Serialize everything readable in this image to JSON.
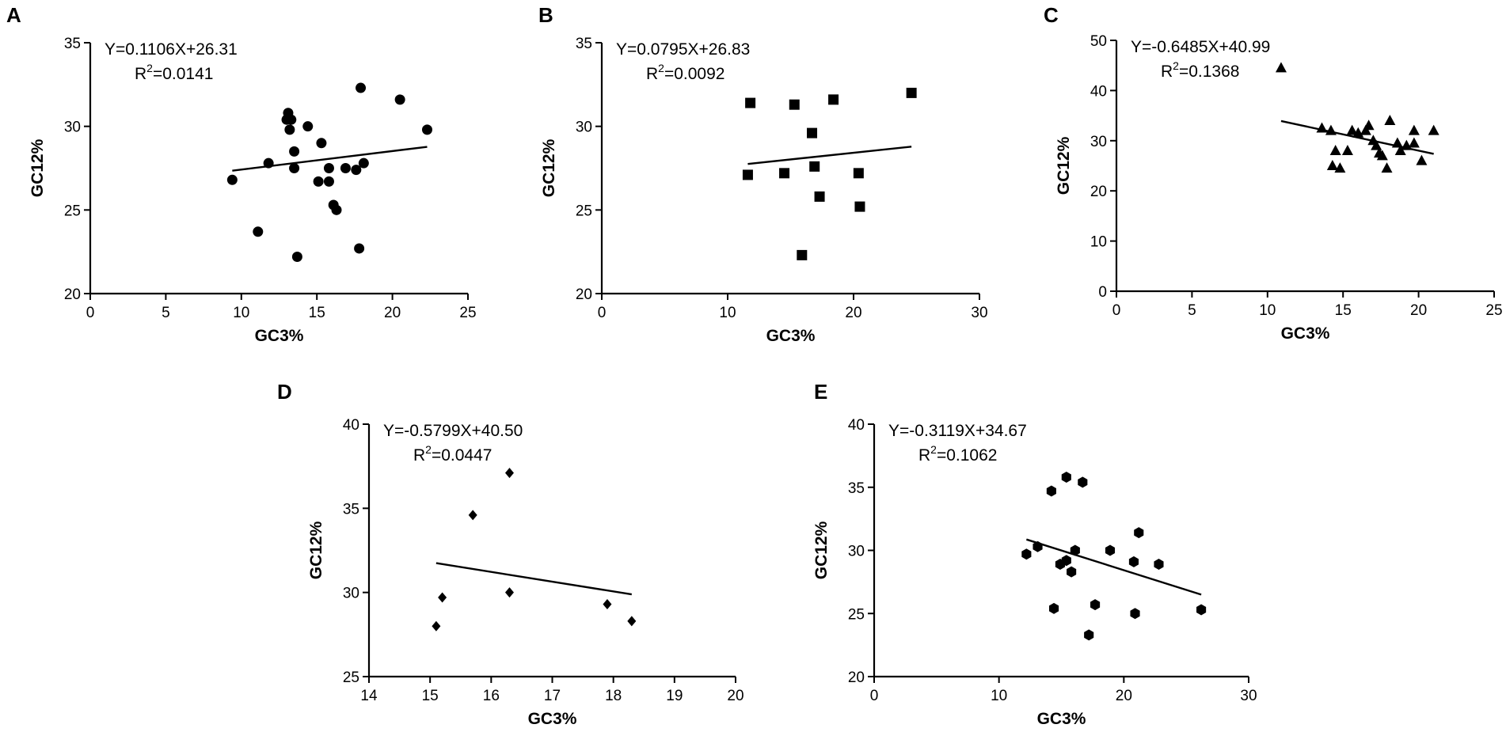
{
  "chart_data": [
    {
      "type": "scatter",
      "panel": "A",
      "marker": "circle",
      "xlabel": "GC3%",
      "ylabel": "GC12%",
      "xlim": [
        0,
        25
      ],
      "ylim": [
        20,
        35
      ],
      "xticks": [
        0,
        5,
        10,
        15,
        20,
        25
      ],
      "yticks": [
        20,
        25,
        30,
        35
      ],
      "equation": "Y=0.1106X+26.31",
      "r2_prefix": "R",
      "r2_exp": "2",
      "r2_value": "=0.0141",
      "fit": {
        "slope": 0.1106,
        "intercept": 26.31,
        "x_from": 9.4,
        "x_to": 22.3
      },
      "points": [
        [
          9.4,
          26.8
        ],
        [
          11.1,
          23.7
        ],
        [
          11.8,
          27.8
        ],
        [
          13.0,
          30.4
        ],
        [
          13.1,
          30.8
        ],
        [
          13.2,
          29.8
        ],
        [
          13.3,
          30.4
        ],
        [
          13.5,
          27.5
        ],
        [
          13.5,
          28.5
        ],
        [
          13.7,
          22.2
        ],
        [
          14.4,
          30.0
        ],
        [
          15.1,
          26.7
        ],
        [
          15.3,
          29.0
        ],
        [
          15.8,
          27.5
        ],
        [
          15.8,
          26.7
        ],
        [
          16.1,
          25.3
        ],
        [
          16.3,
          25.0
        ],
        [
          16.9,
          27.5
        ],
        [
          17.6,
          27.4
        ],
        [
          17.8,
          22.7
        ],
        [
          17.9,
          32.3
        ],
        [
          18.1,
          27.8
        ],
        [
          20.5,
          31.6
        ],
        [
          22.3,
          29.8
        ]
      ]
    },
    {
      "type": "scatter",
      "panel": "B",
      "marker": "square",
      "xlabel": "GC3%",
      "ylabel": "GC12%",
      "xlim": [
        0,
        30
      ],
      "ylim": [
        20,
        35
      ],
      "xticks": [
        0,
        10,
        20,
        30
      ],
      "yticks": [
        20,
        25,
        30,
        35
      ],
      "equation": "Y=0.0795X+26.83",
      "r2_prefix": "R",
      "r2_exp": "2",
      "r2_value": "=0.0092",
      "fit": {
        "slope": 0.0795,
        "intercept": 26.83,
        "x_from": 11.6,
        "x_to": 24.6
      },
      "points": [
        [
          11.6,
          27.1
        ],
        [
          11.8,
          31.4
        ],
        [
          14.5,
          27.2
        ],
        [
          15.3,
          31.3
        ],
        [
          16.7,
          29.6
        ],
        [
          16.9,
          27.6
        ],
        [
          17.3,
          25.8
        ],
        [
          15.9,
          22.3
        ],
        [
          18.4,
          31.6
        ],
        [
          20.4,
          27.2
        ],
        [
          20.5,
          25.2
        ],
        [
          24.6,
          32.0
        ]
      ]
    },
    {
      "type": "scatter",
      "panel": "C",
      "marker": "triangle",
      "xlabel": "GC3%",
      "ylabel": "GC12%",
      "xlim": [
        0,
        25
      ],
      "ylim": [
        0,
        50
      ],
      "xticks": [
        0,
        5,
        10,
        15,
        20,
        25
      ],
      "yticks": [
        0,
        10,
        20,
        30,
        40,
        50
      ],
      "equation": "Y=-0.6485X+40.99",
      "r2_prefix": "R",
      "r2_exp": "2",
      "r2_value": "=0.1368",
      "fit": {
        "slope": -0.6485,
        "intercept": 40.99,
        "x_from": 10.9,
        "x_to": 21.0
      },
      "points": [
        [
          10.9,
          44.5
        ],
        [
          13.6,
          32.5
        ],
        [
          14.2,
          32.0
        ],
        [
          14.3,
          25.0
        ],
        [
          14.5,
          28.0
        ],
        [
          14.8,
          24.5
        ],
        [
          15.3,
          28.0
        ],
        [
          15.6,
          32.0
        ],
        [
          16.0,
          31.5
        ],
        [
          16.5,
          32.0
        ],
        [
          16.7,
          33.0
        ],
        [
          17.0,
          30.0
        ],
        [
          17.2,
          29.0
        ],
        [
          17.4,
          27.5
        ],
        [
          17.6,
          27.0
        ],
        [
          17.9,
          24.5
        ],
        [
          18.1,
          34.0
        ],
        [
          18.6,
          29.5
        ],
        [
          18.8,
          28.0
        ],
        [
          19.2,
          29.0
        ],
        [
          19.7,
          32.0
        ],
        [
          19.7,
          29.5
        ],
        [
          20.2,
          26.0
        ],
        [
          21.0,
          32.0
        ]
      ]
    },
    {
      "type": "scatter",
      "panel": "D",
      "marker": "diamond",
      "xlabel": "GC3%",
      "ylabel": "GC12%",
      "xlim": [
        14,
        20
      ],
      "ylim": [
        25,
        40
      ],
      "xticks": [
        14,
        15,
        16,
        17,
        18,
        19,
        20
      ],
      "yticks": [
        25,
        30,
        35,
        40
      ],
      "equation": "Y=-0.5799X+40.50",
      "r2_prefix": "R",
      "r2_exp": "2",
      "r2_value": "=0.0447",
      "fit": {
        "slope": -0.5799,
        "intercept": 40.5,
        "x_from": 15.1,
        "x_to": 18.3
      },
      "points": [
        [
          15.1,
          28.0
        ],
        [
          15.2,
          29.7
        ],
        [
          15.7,
          34.6
        ],
        [
          16.3,
          37.1
        ],
        [
          16.3,
          30.0
        ],
        [
          17.9,
          29.3
        ],
        [
          18.3,
          28.3
        ]
      ]
    },
    {
      "type": "scatter",
      "panel": "E",
      "marker": "hexagon",
      "xlabel": "GC3%",
      "ylabel": "GC12%",
      "xlim": [
        0,
        30
      ],
      "ylim": [
        20,
        40
      ],
      "xticks": [
        0,
        10,
        20,
        30
      ],
      "yticks": [
        20,
        25,
        30,
        35,
        40
      ],
      "equation": "Y=-0.3119X+34.67",
      "r2_prefix": "R",
      "r2_exp": "2",
      "r2_value": "=0.1062",
      "fit": {
        "slope": -0.3119,
        "intercept": 34.67,
        "x_from": 12.2,
        "x_to": 26.2
      },
      "points": [
        [
          12.2,
          29.7
        ],
        [
          13.1,
          30.3
        ],
        [
          14.2,
          34.7
        ],
        [
          14.4,
          25.4
        ],
        [
          14.9,
          28.9
        ],
        [
          15.4,
          29.2
        ],
        [
          15.4,
          35.8
        ],
        [
          15.8,
          28.3
        ],
        [
          16.1,
          30.0
        ],
        [
          16.7,
          35.4
        ],
        [
          17.2,
          23.3
        ],
        [
          17.7,
          25.7
        ],
        [
          18.9,
          30.0
        ],
        [
          20.8,
          29.1
        ],
        [
          20.9,
          25.0
        ],
        [
          21.2,
          31.4
        ],
        [
          22.8,
          28.9
        ],
        [
          26.2,
          25.3
        ]
      ]
    }
  ]
}
